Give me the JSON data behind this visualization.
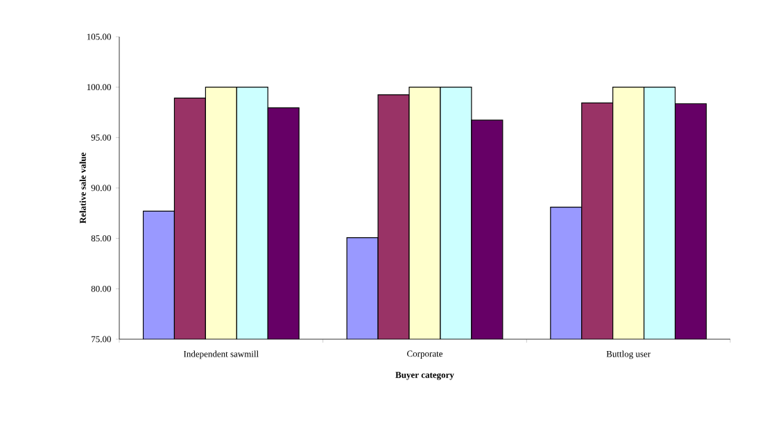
{
  "chart_data": {
    "type": "bar",
    "xlabel": "Buyer category",
    "ylabel": "Relative sale value",
    "categories": [
      "Independent sawmill",
      "Corporate",
      "Buttlog user"
    ],
    "series": [
      {
        "color": "#9999ff",
        "values": [
          87.7,
          85.07,
          88.1
        ]
      },
      {
        "color": "#993366",
        "values": [
          98.92,
          99.25,
          98.43
        ]
      },
      {
        "color": "#ffffcc",
        "values": [
          100,
          100,
          100
        ]
      },
      {
        "color": "#ccffff",
        "values": [
          100,
          100,
          100
        ]
      },
      {
        "color": "#660066",
        "values": [
          97.96,
          96.73,
          98.36
        ]
      }
    ],
    "ylim": [
      75,
      105
    ],
    "yticks": [
      {
        "value": 75,
        "label": "75.00"
      },
      {
        "value": 80,
        "label": "80.00"
      },
      {
        "value": 85,
        "label": "85.00"
      },
      {
        "value": 90,
        "label": "90.00"
      },
      {
        "value": 95,
        "label": "95.00"
      },
      {
        "value": 100,
        "label": "100.00"
      },
      {
        "value": 105,
        "label": "105.00"
      }
    ]
  }
}
